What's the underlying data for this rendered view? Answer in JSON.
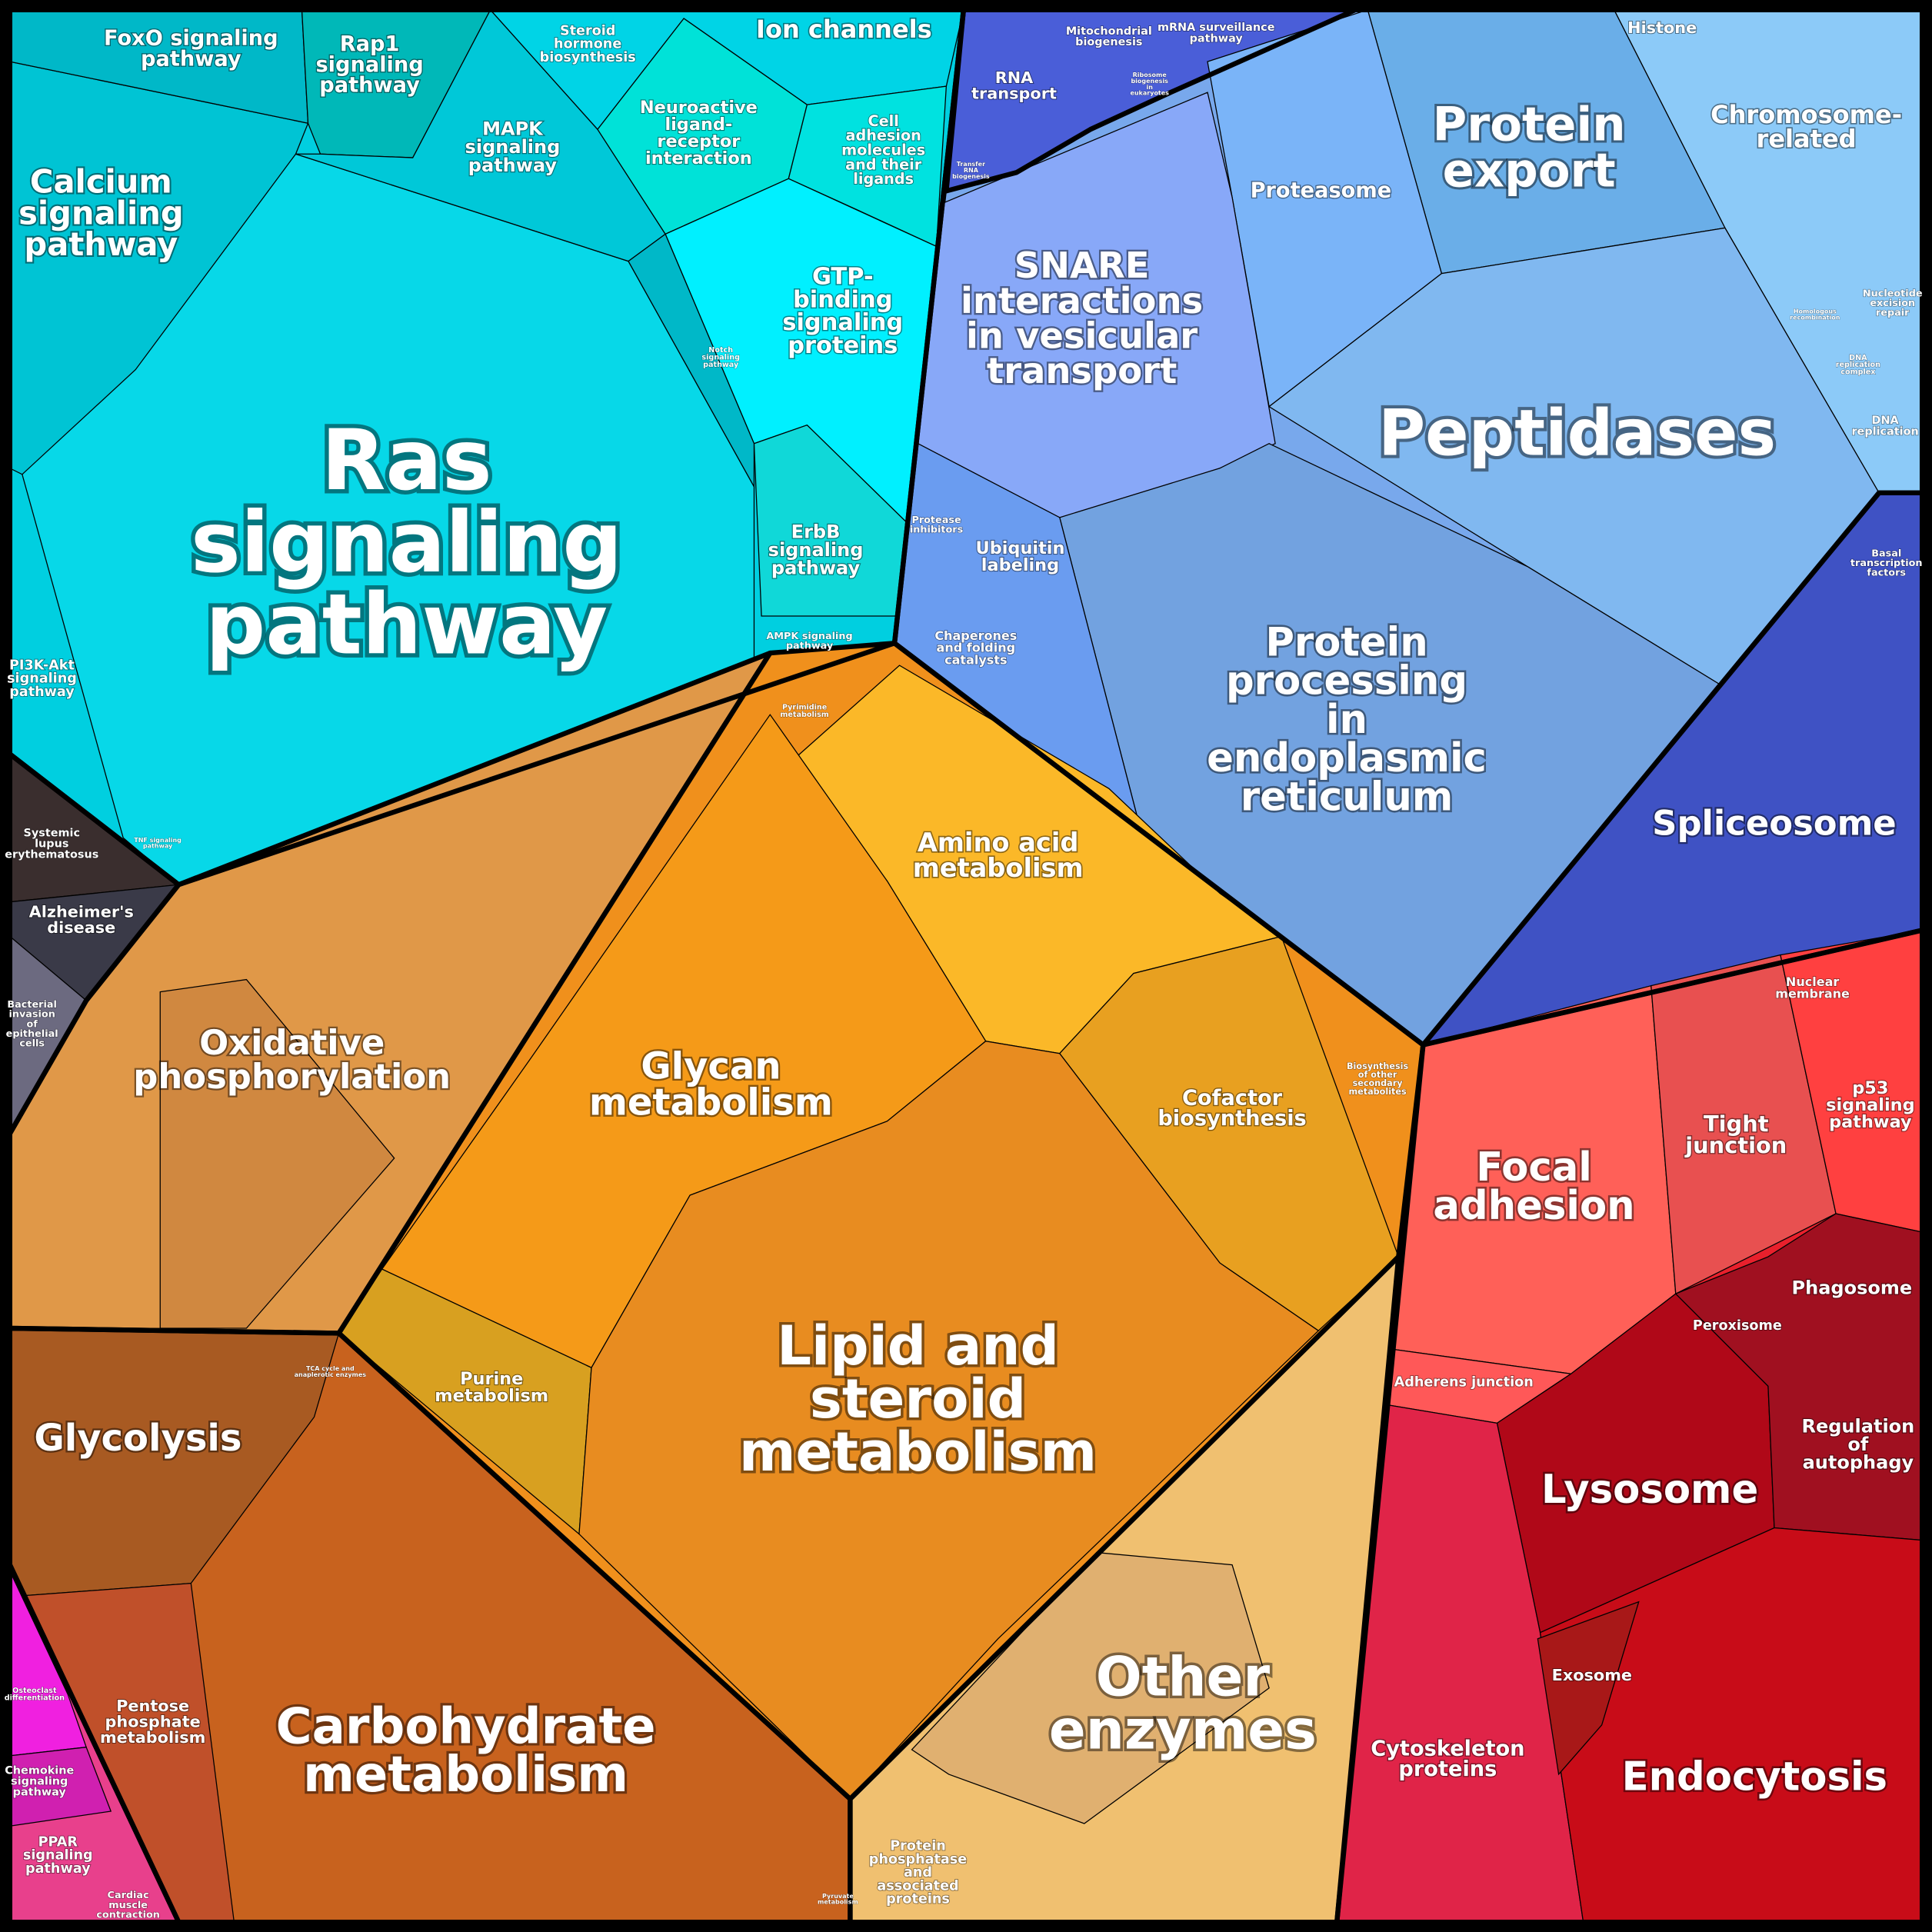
{
  "cells": [
    {
      "lines": [
        "Ras",
        "signaling",
        "pathway"
      ]
    },
    {
      "lines": [
        "Calcium",
        "signaling",
        "pathway"
      ]
    },
    {
      "lines": [
        "FoxO signaling",
        "pathway"
      ]
    },
    {
      "lines": [
        "Rap1",
        "signaling",
        "pathway"
      ]
    },
    {
      "lines": [
        "MAPK",
        "signaling",
        "pathway"
      ]
    },
    {
      "lines": [
        "Steroid",
        "hormone",
        "biosynthesis"
      ]
    },
    {
      "lines": [
        "Ion channels"
      ]
    },
    {
      "lines": [
        "Neuroactive",
        "ligand-",
        "receptor",
        "interaction"
      ]
    },
    {
      "lines": [
        "Cell",
        "adhesion",
        "molecules",
        "and their",
        "ligands"
      ]
    },
    {
      "lines": [
        "GTP-",
        "binding",
        "signaling",
        "proteins"
      ]
    },
    {
      "lines": [
        "Notch",
        "signaling",
        "pathway"
      ]
    },
    {
      "lines": [
        "ErbB",
        "signaling",
        "pathway"
      ]
    },
    {
      "lines": [
        "AMPK signaling",
        "pathway"
      ]
    },
    {
      "lines": [
        "PI3K-Akt",
        "signaling",
        "pathway"
      ]
    },
    {
      "lines": [
        "TNF signaling",
        "pathway"
      ]
    },
    {
      "lines": [
        "Systemic",
        "lupus",
        "erythematosus"
      ]
    },
    {
      "lines": [
        "Alzheimer's",
        "disease"
      ]
    },
    {
      "lines": [
        "Bacterial",
        "invasion",
        "of",
        "epithelial",
        "cells"
      ]
    },
    {
      "lines": [
        "RNA",
        "transport"
      ]
    },
    {
      "lines": [
        "Mitochondrial",
        "biogenesis"
      ]
    },
    {
      "lines": [
        "mRNA surveillance",
        "pathway"
      ]
    },
    {
      "lines": [
        "Ribosome",
        "biogenesis",
        "in",
        "eukaryotes"
      ]
    },
    {
      "lines": [
        "Transfer",
        "RNA",
        "biogenesis"
      ]
    },
    {
      "lines": [
        "Histone"
      ]
    },
    {
      "lines": [
        "Chromosome-",
        "related"
      ]
    },
    {
      "lines": [
        "Protein",
        "export"
      ]
    },
    {
      "lines": [
        "Proteasome"
      ]
    },
    {
      "lines": [
        "SNARE",
        "interactions",
        "in vesicular",
        "transport"
      ]
    },
    {
      "lines": [
        "Peptidases"
      ]
    },
    {
      "lines": [
        "Homologous",
        "recombination"
      ]
    },
    {
      "lines": [
        "Nucleotide",
        "excision",
        "repair"
      ]
    },
    {
      "lines": [
        "DNA",
        "replication",
        "complex"
      ]
    },
    {
      "lines": [
        "DNA",
        "replication"
      ]
    },
    {
      "lines": [
        "Protease",
        "inhibitors"
      ]
    },
    {
      "lines": [
        "Ubiquitin",
        "labeling"
      ]
    },
    {
      "lines": [
        "Chaperones",
        "and folding",
        "catalysts"
      ]
    },
    {
      "lines": [
        "Protein",
        "processing",
        "in",
        "endoplasmic",
        "reticulum"
      ]
    },
    {
      "lines": [
        "Basal",
        "transcription",
        "factors"
      ]
    },
    {
      "lines": [
        "Spliceosome"
      ]
    },
    {
      "lines": [
        "Pyrimidine",
        "metabolism"
      ]
    },
    {
      "lines": [
        "Amino acid",
        "metabolism"
      ]
    },
    {
      "lines": [
        "Oxidative",
        "phosphorylation"
      ]
    },
    {
      "lines": [
        "Glycan",
        "metabolism"
      ]
    },
    {
      "lines": [
        "Cofactor",
        "biosynthesis"
      ]
    },
    {
      "lines": [
        "Biosynthesis",
        "of other",
        "secondary",
        "metabolites"
      ]
    },
    {
      "lines": [
        "Lipid and",
        "steroid",
        "metabolism"
      ]
    },
    {
      "lines": [
        "Purine",
        "metabolism"
      ]
    },
    {
      "lines": [
        "TCA cycle and",
        "anaplerotic enzymes"
      ]
    },
    {
      "lines": [
        "Glycolysis"
      ]
    },
    {
      "lines": [
        "Pentose",
        "phosphate",
        "metabolism"
      ]
    },
    {
      "lines": [
        "Carbohydrate",
        "metabolism"
      ]
    },
    {
      "lines": [
        "Osteoclast",
        "differentiation"
      ]
    },
    {
      "lines": [
        "Chemokine",
        "signaling",
        "pathway"
      ]
    },
    {
      "lines": [
        "PPAR",
        "signaling",
        "pathway"
      ]
    },
    {
      "lines": [
        "Cardiac",
        "muscle",
        "contraction"
      ]
    },
    {
      "lines": [
        "Pyruvate",
        "metabolism"
      ]
    },
    {
      "lines": [
        "Protein",
        "phosphatase",
        "and",
        "associated",
        "proteins"
      ]
    },
    {
      "lines": [
        "Other",
        "enzymes"
      ]
    },
    {
      "lines": [
        "Nuclear",
        "membrane"
      ]
    },
    {
      "lines": [
        "p53",
        "signaling",
        "pathway"
      ]
    },
    {
      "lines": [
        "Tight",
        "junction"
      ]
    },
    {
      "lines": [
        "Focal",
        "adhesion"
      ]
    },
    {
      "lines": [
        "Phagosome"
      ]
    },
    {
      "lines": [
        "Peroxisome"
      ]
    },
    {
      "lines": [
        "Adherens junction"
      ]
    },
    {
      "lines": [
        "Regulation",
        "of",
        "autophagy"
      ]
    },
    {
      "lines": [
        "Lysosome"
      ]
    },
    {
      "lines": [
        "Exosome"
      ]
    },
    {
      "lines": [
        "Cytoskeleton",
        "proteins"
      ]
    },
    {
      "lines": [
        "Endocytosis"
      ]
    }
  ]
}
